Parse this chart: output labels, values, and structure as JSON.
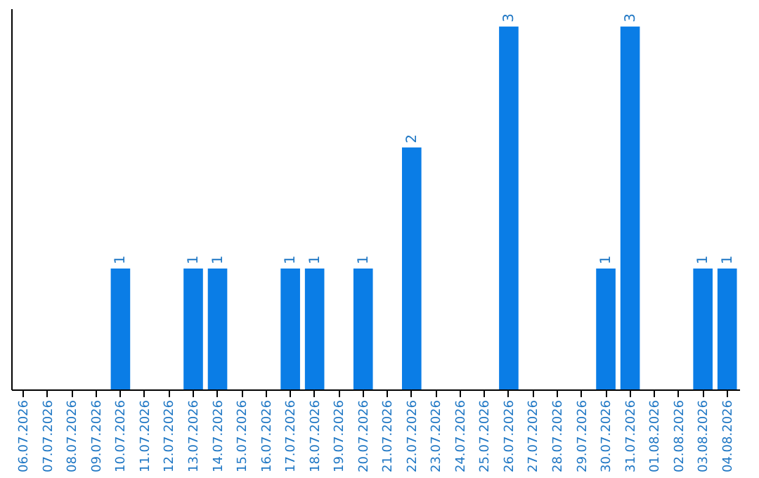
{
  "chart_data": {
    "type": "bar",
    "categories": [
      "06.07.2026",
      "07.07.2026",
      "08.07.2026",
      "09.07.2026",
      "10.07.2026",
      "11.07.2026",
      "12.07.2026",
      "13.07.2026",
      "14.07.2026",
      "15.07.2026",
      "16.07.2026",
      "17.07.2026",
      "18.07.2026",
      "19.07.2026",
      "20.07.2026",
      "21.07.2026",
      "22.07.2026",
      "23.07.2026",
      "24.07.2026",
      "25.07.2026",
      "26.07.2026",
      "27.07.2026",
      "28.07.2026",
      "29.07.2026",
      "30.07.2026",
      "31.07.2026",
      "01.08.2026",
      "02.08.2026",
      "03.08.2026",
      "04.08.2026"
    ],
    "values": [
      0,
      0,
      0,
      0,
      1,
      0,
      0,
      1,
      1,
      0,
      0,
      1,
      1,
      0,
      1,
      0,
      2,
      0,
      0,
      0,
      3,
      0,
      0,
      0,
      1,
      3,
      0,
      0,
      1,
      1
    ],
    "value_labels": [
      null,
      null,
      null,
      null,
      "1",
      null,
      null,
      "1",
      "1",
      null,
      null,
      "1",
      "1",
      null,
      "1",
      null,
      "2",
      null,
      null,
      null,
      "3",
      null,
      null,
      null,
      "1",
      "3",
      null,
      null,
      "1",
      "1"
    ],
    "color": "#0a7de6",
    "ylim": [
      0,
      3.15
    ],
    "tick_labels": "x",
    "grid": false
  }
}
